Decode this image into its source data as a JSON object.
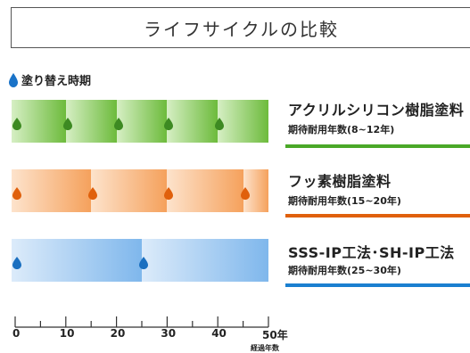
{
  "title": "ライフサイクルの比較",
  "legend": {
    "label": "塗り替え時期",
    "icon": "water-drop-icon",
    "icon_color": "#1a73c8"
  },
  "products": [
    {
      "name": "アクリルシリコン樹脂塗料",
      "life": "期待耐用年数(8~12年)",
      "color": "#4aa828",
      "light": "#d6efc4",
      "dark": "#6dbb3c",
      "drop_color": "#3d8a22",
      "repaint_years": [
        0,
        10,
        20,
        30,
        40
      ]
    },
    {
      "name": "フッ素樹脂塗料",
      "life": "期待耐用年数(15~20年)",
      "color": "#e0600c",
      "light": "#fde3cc",
      "dark": "#f5a15c",
      "drop_color": "#e0600c",
      "repaint_years": [
        0,
        15,
        30,
        45
      ]
    },
    {
      "name": "SSS-IP工法･SH-IP工法",
      "life": "期待耐用年数(25~30年)",
      "color": "#1a7fd0",
      "light": "#dcebfa",
      "dark": "#7fb7ec",
      "drop_color": "#1a6fc0",
      "repaint_years": [
        0,
        25
      ]
    }
  ],
  "axis": {
    "ticks": [
      "0",
      "10",
      "20",
      "30",
      "40",
      "50年"
    ],
    "unit_label": "経過年数",
    "max_years": 50
  }
}
